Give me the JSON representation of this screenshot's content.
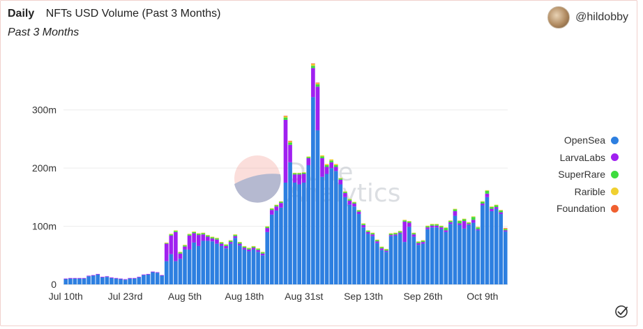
{
  "header": {
    "period": "Daily",
    "title": "NFTs USD Volume (Past 3 Months)",
    "subtitle": "Past 3 Months",
    "author": "@hildobby"
  },
  "watermark": {
    "line1": "Dune",
    "line2": "Analytics"
  },
  "icons": {
    "avatar": "avatar-icon",
    "check": "check-circle-icon"
  },
  "chart_data": {
    "type": "bar",
    "stacked": true,
    "title": "NFTs USD Volume (Past 3 Months)",
    "xlabel": "",
    "ylabel": "",
    "ylim": [
      0,
      380
    ],
    "yticks": [
      {
        "value": 0,
        "label": "0"
      },
      {
        "value": 100,
        "label": "100m"
      },
      {
        "value": 200,
        "label": "200m"
      },
      {
        "value": 300,
        "label": "300m"
      }
    ],
    "xticks": [
      {
        "index": 0,
        "label": "Jul 10th"
      },
      {
        "index": 13,
        "label": "Jul 23rd"
      },
      {
        "index": 26,
        "label": "Aug 5th"
      },
      {
        "index": 39,
        "label": "Aug 18th"
      },
      {
        "index": 52,
        "label": "Aug 31st"
      },
      {
        "index": 65,
        "label": "Sep 13th"
      },
      {
        "index": 78,
        "label": "Sep 26th"
      },
      {
        "index": 91,
        "label": "Oct 9th"
      }
    ],
    "legend_position": "right",
    "series": [
      {
        "name": "OpenSea",
        "color": "#2d7fe0",
        "values": [
          9,
          10,
          10,
          10,
          10,
          14,
          15,
          17,
          12,
          13,
          11,
          10,
          9,
          8,
          10,
          10,
          12,
          16,
          17,
          21,
          20,
          15,
          40,
          52,
          40,
          44,
          60,
          60,
          72,
          66,
          75,
          75,
          74,
          70,
          66,
          62,
          70,
          80,
          67,
          60,
          57,
          60,
          56,
          50,
          90,
          120,
          127,
          132,
          175,
          210,
          175,
          172,
          175,
          205,
          322,
          265,
          185,
          190,
          200,
          195,
          172,
          150,
          137,
          134,
          121,
          98,
          87,
          83,
          71,
          59,
          56,
          83,
          84,
          87,
          73,
          99,
          82,
          68,
          70,
          95,
          98,
          98,
          95,
          90,
          104,
          118,
          102,
          96,
          102,
          106,
          93,
          136,
          150,
          126,
          130,
          121,
          91
        ]
      },
      {
        "name": "LarvaLabs",
        "color": "#a020f0",
        "values": [
          1,
          1,
          1,
          1,
          1,
          1,
          1,
          1,
          1,
          1,
          1,
          1,
          1,
          1,
          1,
          1,
          1,
          1,
          1,
          1,
          1,
          1,
          30,
          32,
          50,
          9,
          5,
          24,
          16,
          19,
          11,
          7,
          5,
          7,
          4,
          4,
          3,
          3,
          3,
          3,
          3,
          3,
          3,
          3,
          7,
          8,
          7,
          8,
          108,
          30,
          14,
          17,
          15,
          12,
          50,
          75,
          32,
          12,
          10,
          7,
          8,
          7,
          7,
          5,
          4,
          4,
          3,
          3,
          3,
          3,
          2,
          2,
          2,
          2,
          35,
          7,
          4,
          3,
          3,
          3,
          3,
          3,
          3,
          3,
          3,
          8,
          3,
          13,
          2,
          5,
          2,
          3,
          6,
          4,
          3,
          3,
          2
        ]
      },
      {
        "name": "SuperRare",
        "color": "#3ddc3d",
        "values": [
          0,
          0,
          0,
          0,
          0,
          0,
          0,
          0,
          0,
          0,
          0,
          0,
          0,
          0,
          0,
          0,
          0,
          0,
          0,
          0,
          0,
          0,
          1,
          2,
          2,
          2,
          2,
          2,
          2,
          2,
          2,
          2,
          2,
          2,
          2,
          2,
          2,
          2,
          2,
          2,
          2,
          2,
          2,
          2,
          2,
          2,
          2,
          2,
          4,
          4,
          2,
          2,
          2,
          2,
          4,
          4,
          3,
          3,
          3,
          3,
          2,
          2,
          2,
          2,
          2,
          2,
          2,
          2,
          2,
          2,
          2,
          2,
          2,
          2,
          2,
          2,
          2,
          2,
          2,
          2,
          2,
          2,
          2,
          4,
          2,
          3,
          4,
          3,
          2,
          5,
          3,
          3,
          5,
          3,
          3,
          3,
          2
        ]
      },
      {
        "name": "Rarible",
        "color": "#f0d030",
        "values": [
          0,
          0,
          0,
          0,
          0,
          0,
          0,
          0,
          0,
          0,
          0,
          0,
          0,
          0,
          0,
          0,
          0,
          0,
          0,
          0,
          0,
          0,
          1,
          1,
          1,
          1,
          1,
          1,
          1,
          1,
          1,
          1,
          1,
          1,
          1,
          1,
          1,
          1,
          1,
          1,
          1,
          1,
          1,
          1,
          1,
          1,
          1,
          1,
          2,
          2,
          1,
          1,
          1,
          1,
          3,
          2,
          2,
          2,
          2,
          2,
          1,
          1,
          1,
          1,
          1,
          1,
          1,
          1,
          1,
          1,
          1,
          1,
          1,
          1,
          1,
          1,
          1,
          1,
          1,
          1,
          1,
          1,
          1,
          1,
          1,
          1,
          1,
          1,
          1,
          1,
          1,
          1,
          1,
          1,
          1,
          1,
          1
        ]
      },
      {
        "name": "Foundation",
        "color": "#f06030",
        "values": [
          0,
          0,
          0,
          0,
          0,
          0,
          0,
          0,
          0,
          0,
          0,
          0,
          0,
          0,
          0,
          0,
          0,
          0,
          0,
          0,
          0,
          0,
          0,
          0,
          0,
          0,
          0,
          0,
          0,
          0,
          0,
          0,
          0,
          0,
          0,
          0,
          0,
          0,
          0,
          0,
          0,
          0,
          0,
          0,
          0,
          0,
          0,
          0,
          1,
          1,
          0,
          0,
          0,
          0,
          1,
          1,
          0,
          0,
          0,
          0,
          0,
          0,
          0,
          0,
          0,
          0,
          0,
          0,
          0,
          0,
          0,
          0,
          0,
          0,
          0,
          0,
          0,
          0,
          0,
          0,
          0,
          0,
          0,
          0,
          0,
          0,
          0,
          0,
          0,
          0,
          0,
          0,
          0,
          0,
          0,
          0,
          1
        ]
      }
    ]
  }
}
